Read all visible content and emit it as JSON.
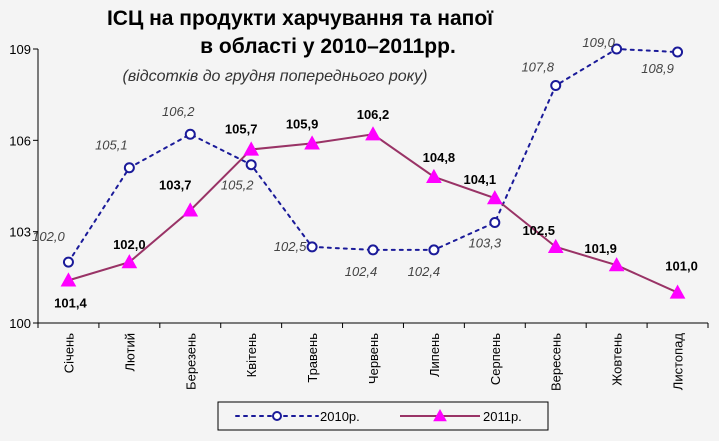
{
  "chart_data": {
    "type": "line",
    "title_line1": "ІСЦ на продукти харчування та напої",
    "title_line2": "в області у 2010–2011рр.",
    "subtitle": "(відсотків до грудня попереднього року)",
    "categories": [
      "Січень",
      "Лютий",
      "Березень",
      "Квітень",
      "Травень",
      "Червень",
      "Липень",
      "Серпень",
      "Вересень",
      "Жовтень",
      "Листопад"
    ],
    "y_ticks": [
      "100",
      "103",
      "106",
      "109"
    ],
    "ylim": [
      100,
      109
    ],
    "grid": false,
    "legend_position": "bottom",
    "series": [
      {
        "name": "2010р.",
        "color": "#1a1a99",
        "style": "dotted",
        "marker": "circle",
        "values": [
          102.0,
          105.1,
          106.2,
          105.2,
          102.5,
          102.4,
          102.4,
          103.3,
          107.8,
          109.0,
          108.9
        ],
        "labels": [
          "102,0",
          "105,1",
          "106,2",
          "105,2",
          "102,5",
          "102,4",
          "102,4",
          "103,3",
          "107,8",
          "109,0",
          "108,9"
        ]
      },
      {
        "name": "2011р.",
        "color": "#993366",
        "marker_color": "#ff00ff",
        "style": "solid",
        "marker": "triangle",
        "values": [
          101.4,
          102.0,
          103.7,
          105.7,
          105.9,
          106.2,
          104.8,
          104.1,
          102.5,
          101.9,
          101.0
        ],
        "labels": [
          "101,4",
          "102,0",
          "103,7",
          "105,7",
          "105,9",
          "106,2",
          "104,8",
          "104,1",
          "102,5",
          "101,9",
          "101,0"
        ]
      }
    ]
  }
}
